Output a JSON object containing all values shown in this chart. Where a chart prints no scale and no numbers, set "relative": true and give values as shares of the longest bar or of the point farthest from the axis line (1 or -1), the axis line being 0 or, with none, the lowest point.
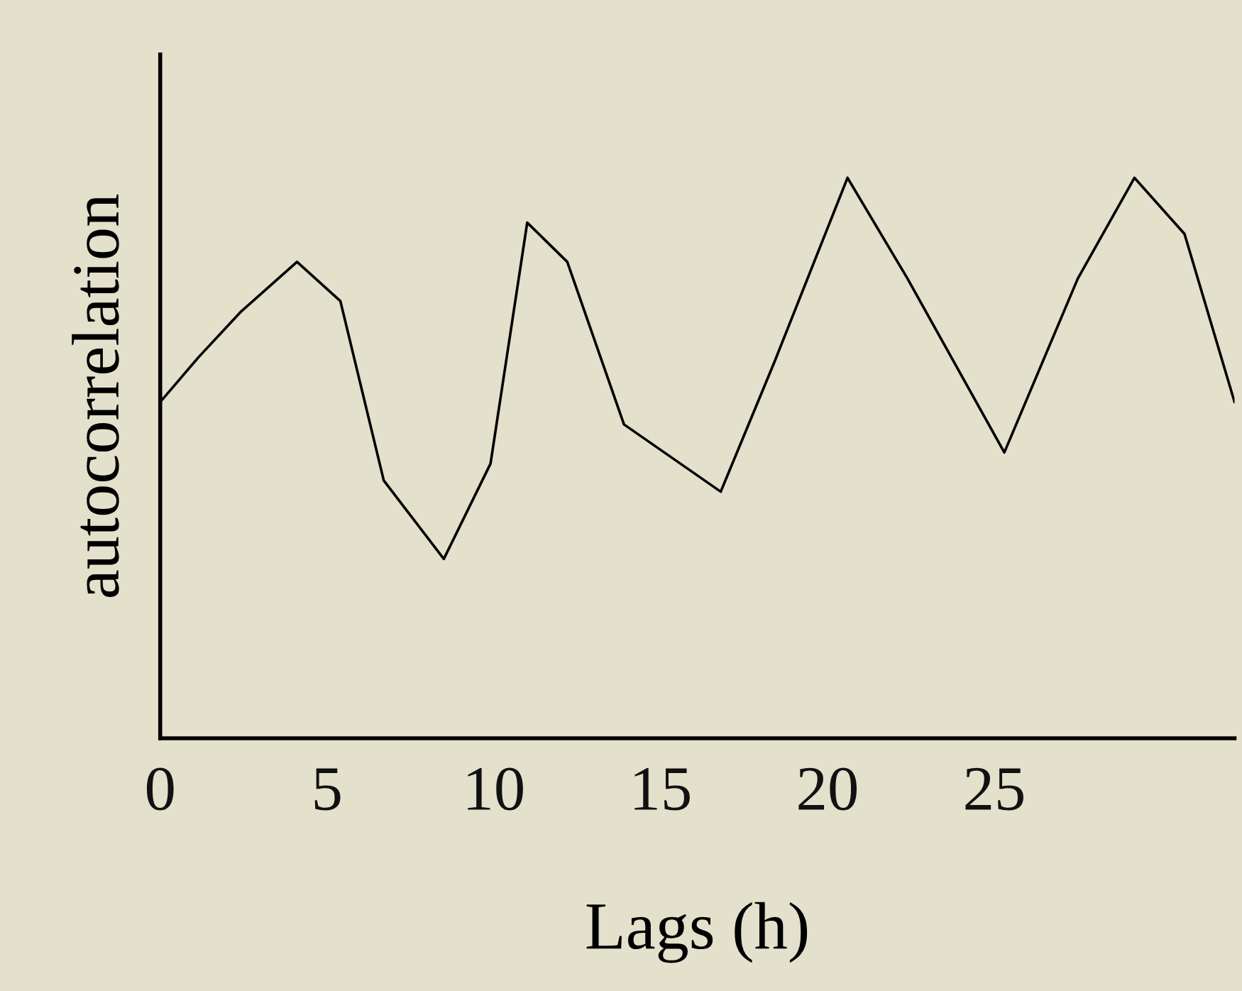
{
  "chart_data": {
    "type": "line",
    "xlabel": "Lags (h)",
    "ylabel": "autocorrelation",
    "relative": true,
    "xlim": [
      0,
      32.2
    ],
    "xticks": [
      0,
      5,
      10,
      15,
      20,
      25
    ],
    "tick_labels": "x",
    "grid": false,
    "legend": false,
    "series": [
      {
        "color": "#000000",
        "x": [
          0,
          1.15,
          2.4,
          4.1,
          5.4,
          6.7,
          8.5,
          9.9,
          11.0,
          12.2,
          13.9,
          16.8,
          18.4,
          20.6,
          22.4,
          25.3,
          27.5,
          29.2,
          30.7,
          32.2
        ],
        "values": [
          0.6,
          0.68,
          0.76,
          0.85,
          0.78,
          0.46,
          0.32,
          0.49,
          0.92,
          0.85,
          0.56,
          0.44,
          0.67,
          1.0,
          0.82,
          0.51,
          0.82,
          1.0,
          0.9,
          0.6
        ]
      }
    ]
  }
}
